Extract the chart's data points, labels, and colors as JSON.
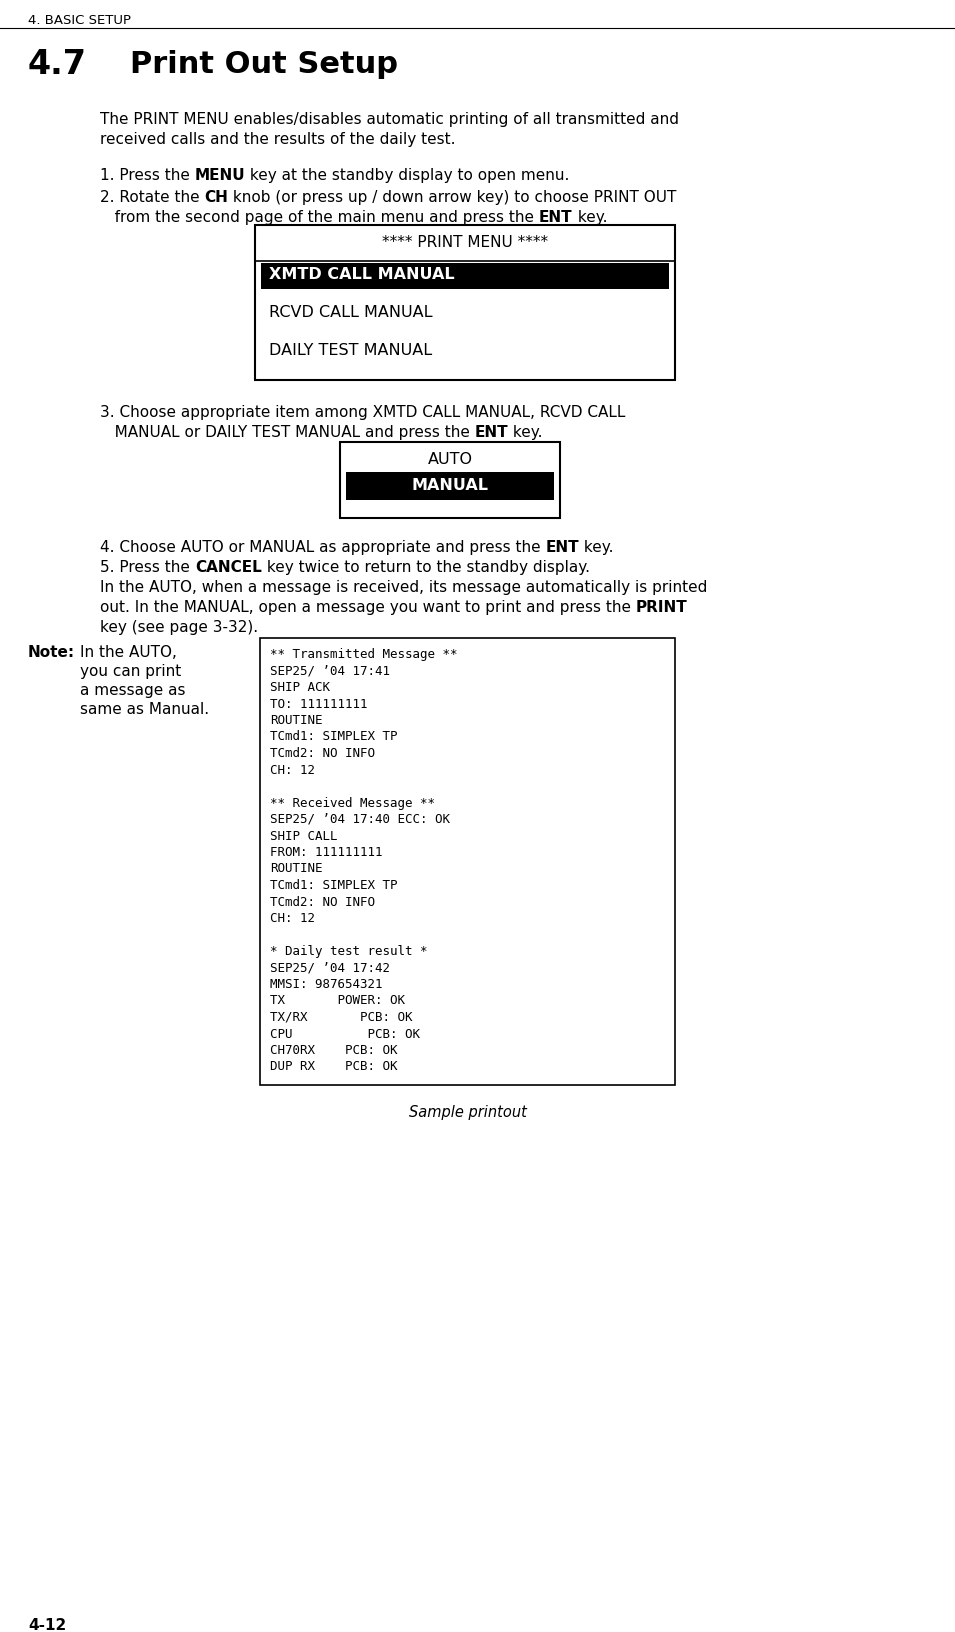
{
  "header": "4. BASIC SETUP",
  "section": "4.7",
  "section_title": "Print Out Setup",
  "body_line1": "The PRINT MENU enables/disables automatic printing of all transmitted and",
  "body_line2": "received calls and the results of the daily test.",
  "step1_a": "1. Press the ",
  "step1_b": "MENU",
  "step1_c": " key at the standby display to open menu.",
  "step2_a": "2. Rotate the ",
  "step2_b": "CH",
  "step2_c": " knob (or press up / down arrow key) to choose PRINT OUT",
  "step2_d": "   from the second page of the main menu and press the ",
  "step2_e": "ENT",
  "step2_f": " key.",
  "print_menu_title": "**** PRINT MENU ****",
  "print_menu_item1": "XMTD CALL MANUAL",
  "print_menu_item2": "RCVD CALL MANUAL",
  "print_menu_item3": "DAILY TEST MANUAL",
  "step3_a": "3. Choose appropriate item among XMTD CALL MANUAL, RCVD CALL",
  "step3_b": "   MANUAL or DAILY TEST MANUAL and press the ",
  "step3_c": "ENT",
  "step3_d": " key.",
  "am_item1": "AUTO",
  "am_item2": "MANUAL",
  "step4_a": "4. Choose AUTO or MANUAL as appropriate and press the ",
  "step4_b": "ENT",
  "step4_c": " key.",
  "step5_a": "5. Press the ",
  "step5_b": "CANCEL",
  "step5_c": " key twice to return to the standby display.",
  "para1": "In the AUTO, when a message is received, its message automatically is printed",
  "para2_a": "out. In the MANUAL, open a message you want to print and press the ",
  "para2_b": "PRINT",
  "para3": "key (see page 3-32).",
  "note_bold": "Note:",
  "note_line1": "In the AUTO,",
  "note_line2": "you can print",
  "note_line3": "a message as",
  "note_line4": "same as Manual.",
  "pr1": "** Transmitted Message **",
  "pr2": "SEP25/ ’04 17:41",
  "pr3": "SHIP ACK",
  "pr4": "TO: 111111111",
  "pr5": "ROUTINE",
  "pr6": "TCmd1: SIMPLEX TP",
  "pr7": "TCmd2: NO INFO",
  "pr8": "CH: 12",
  "pr9": "",
  "pr10": "** Received Message **",
  "pr11": "SEP25/ ’04 17:40 ECC: OK",
  "pr12": "SHIP CALL",
  "pr13": "FROM: 111111111",
  "pr14": "ROUTINE",
  "pr15": "TCmd1: SIMPLEX TP",
  "pr16": "TCmd2: NO INFO",
  "pr17": "CH: 12",
  "pr18": "",
  "pr19": "* Daily test result *",
  "pr20": "SEP25/ ’04 17:42",
  "pr21": "MMSI: 987654321",
  "pr22": "TX       POWER: OK",
  "pr23": "TX/RX       PCB: OK",
  "pr24": "CPU          PCB: OK",
  "pr25": "CH70RX    PCB: OK",
  "pr26": "DUP RX    PCB: OK",
  "caption": "Sample printout",
  "footer": "4-12",
  "bg_color": "#ffffff",
  "text_color": "#000000"
}
